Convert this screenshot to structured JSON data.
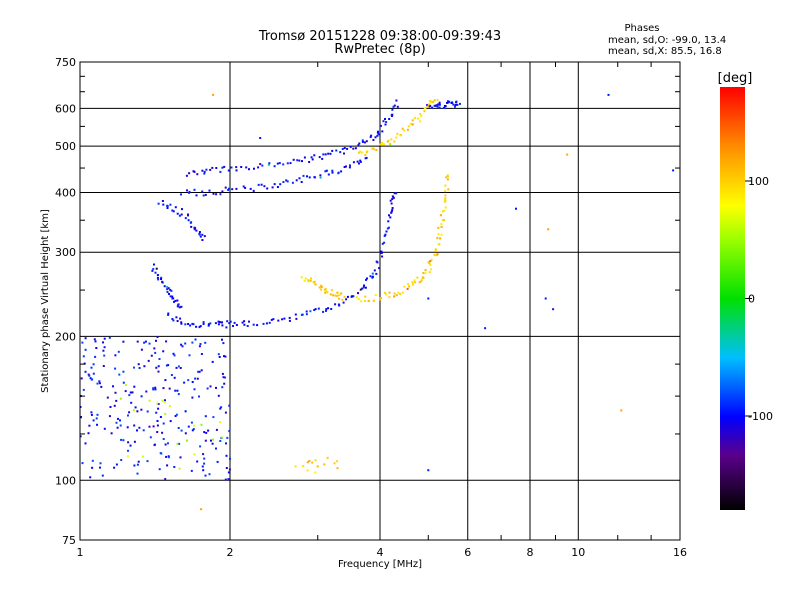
{
  "chart_data": {
    "type": "scatter",
    "title": "Tromsø 20151228 09:38:00-09:39:43",
    "subtitle": "RwPretec (8p)",
    "xlabel": "Frequency [MHz]",
    "ylabel": "Stationary phase Virtual Height [km]",
    "x_scale": "log",
    "y_scale": "log",
    "xlim": [
      1,
      16
    ],
    "ylim": [
      75,
      750
    ],
    "x_ticks": [
      1,
      2,
      4,
      6,
      8,
      10,
      16
    ],
    "x_tick_labels": [
      "1",
      "2",
      "4",
      "6",
      "8",
      "10",
      "16"
    ],
    "y_ticks": [
      75,
      100,
      200,
      300,
      400,
      500,
      600,
      750
    ],
    "y_tick_labels": [
      "75",
      "100",
      "200",
      "300",
      "400",
      "500",
      "600",
      "750"
    ],
    "grid": true,
    "colorbar": {
      "label": "[deg]",
      "range": [
        -180,
        180
      ],
      "ticks": [
        100,
        0,
        -100
      ],
      "tick_labels": [
        "100",
        "0",
        "-100"
      ]
    },
    "legend": {
      "heading": "Phases",
      "line_o": "mean, sd,O: -99.0, 13.4",
      "line_x": "mean, sd,X:  85.5, 16.8"
    },
    "traces": [
      {
        "name": "",
        "phase": -100,
        "points": [
          [
            1.5,
            220
          ],
          [
            1.6,
            214
          ],
          [
            1.75,
            212
          ],
          [
            1.9,
            212
          ],
          [
            2.0,
            212
          ],
          [
            2.2,
            213
          ],
          [
            2.5,
            216
          ],
          [
            2.8,
            221
          ],
          [
            3.1,
            228
          ],
          [
            3.4,
            237
          ],
          [
            3.7,
            252
          ],
          [
            3.9,
            270
          ],
          [
            4.05,
            300
          ],
          [
            4.15,
            340
          ],
          [
            4.22,
            380
          ],
          [
            4.3,
            400
          ]
        ]
      },
      {
        "name": "",
        "phase": -100,
        "points": [
          [
            1.65,
            440
          ],
          [
            1.8,
            445
          ],
          [
            2.0,
            448
          ],
          [
            2.3,
            452
          ],
          [
            2.6,
            460
          ],
          [
            2.9,
            470
          ],
          [
            3.2,
            480
          ],
          [
            3.5,
            495
          ],
          [
            3.8,
            515
          ],
          [
            4.0,
            540
          ],
          [
            4.2,
            580
          ],
          [
            4.35,
            620
          ]
        ]
      },
      {
        "name": "",
        "phase": -100,
        "points": [
          [
            1.6,
            400
          ],
          [
            1.8,
            400
          ],
          [
            2.0,
            405
          ],
          [
            2.3,
            410
          ],
          [
            2.6,
            420
          ],
          [
            2.9,
            430
          ],
          [
            3.2,
            442
          ],
          [
            3.5,
            455
          ],
          [
            3.8,
            470
          ]
        ]
      },
      {
        "name": "",
        "phase": -100,
        "points": [
          [
            1.45,
            380
          ],
          [
            1.55,
            370
          ],
          [
            1.65,
            355
          ],
          [
            1.72,
            330
          ],
          [
            1.78,
            320
          ]
        ]
      },
      {
        "name": "",
        "phase": -100,
        "points": [
          [
            1.4,
            280
          ],
          [
            1.45,
            265
          ],
          [
            1.5,
            250
          ],
          [
            1.55,
            238
          ],
          [
            1.6,
            228
          ]
        ]
      },
      {
        "name": "",
        "phase": -100,
        "points": [
          [
            5.0,
            600
          ],
          [
            5.2,
            605
          ],
          [
            5.4,
            610
          ],
          [
            5.6,
            615
          ],
          [
            5.8,
            612
          ]
        ]
      },
      {
        "name": "",
        "phase": 100,
        "points": [
          [
            3.6,
            238
          ],
          [
            3.9,
            240
          ],
          [
            4.2,
            245
          ],
          [
            4.5,
            252
          ],
          [
            4.8,
            262
          ],
          [
            5.0,
            275
          ],
          [
            5.15,
            295
          ],
          [
            5.25,
            320
          ],
          [
            5.35,
            360
          ],
          [
            5.42,
            400
          ],
          [
            5.48,
            440
          ]
        ]
      },
      {
        "name": "",
        "phase": 100,
        "points": [
          [
            3.6,
            480
          ],
          [
            3.9,
            495
          ],
          [
            4.2,
            510
          ],
          [
            4.5,
            540
          ],
          [
            4.8,
            575
          ],
          [
            5.0,
            610
          ],
          [
            5.2,
            635
          ]
        ]
      },
      {
        "name": "",
        "phase": 100,
        "points": [
          [
            2.8,
            265
          ],
          [
            2.95,
            258
          ],
          [
            3.1,
            252
          ],
          [
            3.25,
            245
          ],
          [
            3.4,
            240
          ]
        ]
      }
    ],
    "clusters": [
      {
        "name": "",
        "phase": -100,
        "x_range": [
          1.0,
          2.0
        ],
        "y_range": [
          100,
          200
        ],
        "count": 260
      },
      {
        "name": "",
        "phase": 60,
        "x_range": [
          1.2,
          2.0
        ],
        "y_range": [
          105,
          160
        ],
        "count": 20
      },
      {
        "name": "",
        "phase": 100,
        "x_range": [
          2.7,
          3.3
        ],
        "y_range": [
          103,
          112
        ],
        "count": 14
      }
    ],
    "scattered": [
      [
        1.85,
        640
      ],
      [
        2.3,
        520
      ],
      [
        11.5,
        640
      ],
      [
        9.5,
        480
      ],
      [
        15.5,
        445
      ],
      [
        7.5,
        370
      ],
      [
        8.7,
        335
      ],
      [
        8.6,
        240
      ],
      [
        6.5,
        208
      ],
      [
        12.2,
        140
      ],
      [
        5.0,
        240
      ],
      [
        5.0,
        105
      ],
      [
        1.75,
        87
      ],
      [
        8.9,
        228
      ]
    ]
  }
}
